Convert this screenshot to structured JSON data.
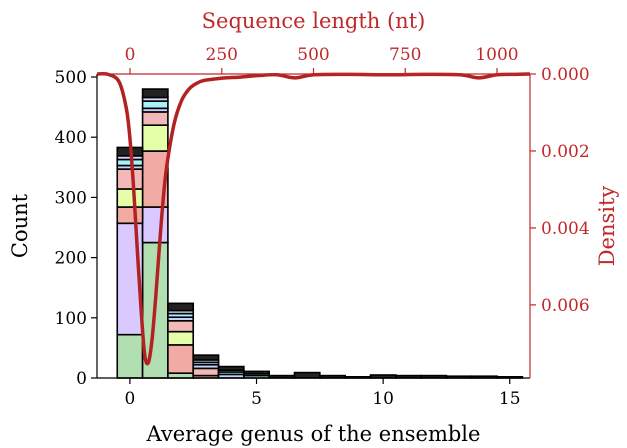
{
  "chart_data": {
    "type": "bar",
    "title": "",
    "xlabel": "Average genus of the ensemble",
    "ylabel": "Count",
    "xlim": [
      -1.3,
      15.8
    ],
    "ylim": [
      0,
      505
    ],
    "x_ticks": [
      0,
      5,
      10,
      15
    ],
    "y_ticks": [
      0,
      100,
      200,
      300,
      400,
      500
    ],
    "grid": false,
    "bin_width": 1,
    "stack_series": [
      {
        "color": "#b2dfb2",
        "bin_starts": [
          -0.5,
          0.5,
          1.5
        ],
        "counts": [
          72,
          225,
          8
        ]
      },
      {
        "color": "#d9c9ff",
        "bin_starts": [
          -0.5,
          0.5,
          1.5
        ],
        "counts": [
          185,
          59,
          0
        ]
      },
      {
        "color": "#f2aaa4",
        "bin_starts": [
          -0.5,
          0.5,
          1.5,
          2.5
        ],
        "counts": [
          27,
          93,
          47,
          4
        ]
      },
      {
        "color": "#e4ffa8",
        "bin_starts": [
          -0.5,
          0.5,
          1.5
        ],
        "counts": [
          30,
          43,
          22
        ]
      },
      {
        "color": "#f3b9b9",
        "bin_starts": [
          -0.5,
          0.5,
          1.5,
          2.5
        ],
        "counts": [
          33,
          22,
          18,
          12
        ]
      },
      {
        "color": "#c5d2ff",
        "bin_starts": [
          -0.5,
          0.5,
          1.5,
          2.5,
          3.5
        ],
        "counts": [
          6,
          6,
          6,
          6,
          6
        ]
      },
      {
        "color": "#a6f2f5",
        "bin_starts": [
          -0.5,
          0.5,
          1.5,
          2.5,
          3.5,
          4.5
        ],
        "counts": [
          10,
          12,
          6,
          4,
          4,
          4
        ]
      },
      {
        "color": "#cfd6ff",
        "bin_starts": [
          -0.5,
          0.5,
          1.5,
          2.5,
          3.5,
          4.5
        ],
        "counts": [
          6,
          6,
          5,
          4,
          3,
          3
        ]
      },
      {
        "color": "#222222",
        "bin_starts": [
          -0.5,
          0.5,
          1.5,
          2.5,
          3.5,
          4.5,
          5.5,
          6.5,
          7.5,
          8.5,
          9.5,
          10.5,
          11.5,
          12.5,
          13.5,
          14.5
        ],
        "counts": [
          14,
          14,
          12,
          8,
          6,
          4,
          4,
          9,
          4,
          2,
          5,
          4,
          4,
          3,
          3,
          2
        ]
      }
    ],
    "secondary_x_axis": {
      "label": "Sequence length (nt)",
      "ticks": [
        0,
        250,
        500,
        750,
        1000
      ],
      "range": [
        -90,
        1090
      ],
      "color": "#c0282a"
    },
    "secondary_y_axis": {
      "label": "Density",
      "ticks": [
        0.0,
        0.002,
        0.004,
        0.006
      ],
      "tick_labels": [
        "0.000",
        "0.002",
        "0.004",
        "0.006"
      ],
      "range": [
        0,
        0.0079
      ],
      "inverted": true,
      "color": "#c0282a"
    },
    "density_series": {
      "color": "#b22222",
      "x": [
        -90,
        -60,
        -30,
        -10,
        0,
        10,
        20,
        30,
        40,
        50,
        60,
        70,
        80,
        90,
        100,
        120,
        140,
        160,
        180,
        200,
        230,
        260,
        300,
        350,
        400,
        450,
        500,
        600,
        700,
        800,
        900,
        950,
        1000,
        1050,
        1090
      ],
      "y": [
        0.0,
        1e-05,
        0.0002,
        0.0009,
        0.0017,
        0.003,
        0.0046,
        0.0061,
        0.0073,
        0.0075,
        0.0069,
        0.0058,
        0.0045,
        0.0033,
        0.0024,
        0.0013,
        0.0007,
        0.0004,
        0.00025,
        0.00017,
        0.00013,
        0.0001,
        8e-05,
        4e-05,
        2e-05,
        0.0001,
        2e-05,
        1e-05,
        2e-05,
        1e-05,
        2e-05,
        0.0001,
        2e-05,
        1e-05,
        0.0
      ]
    }
  }
}
